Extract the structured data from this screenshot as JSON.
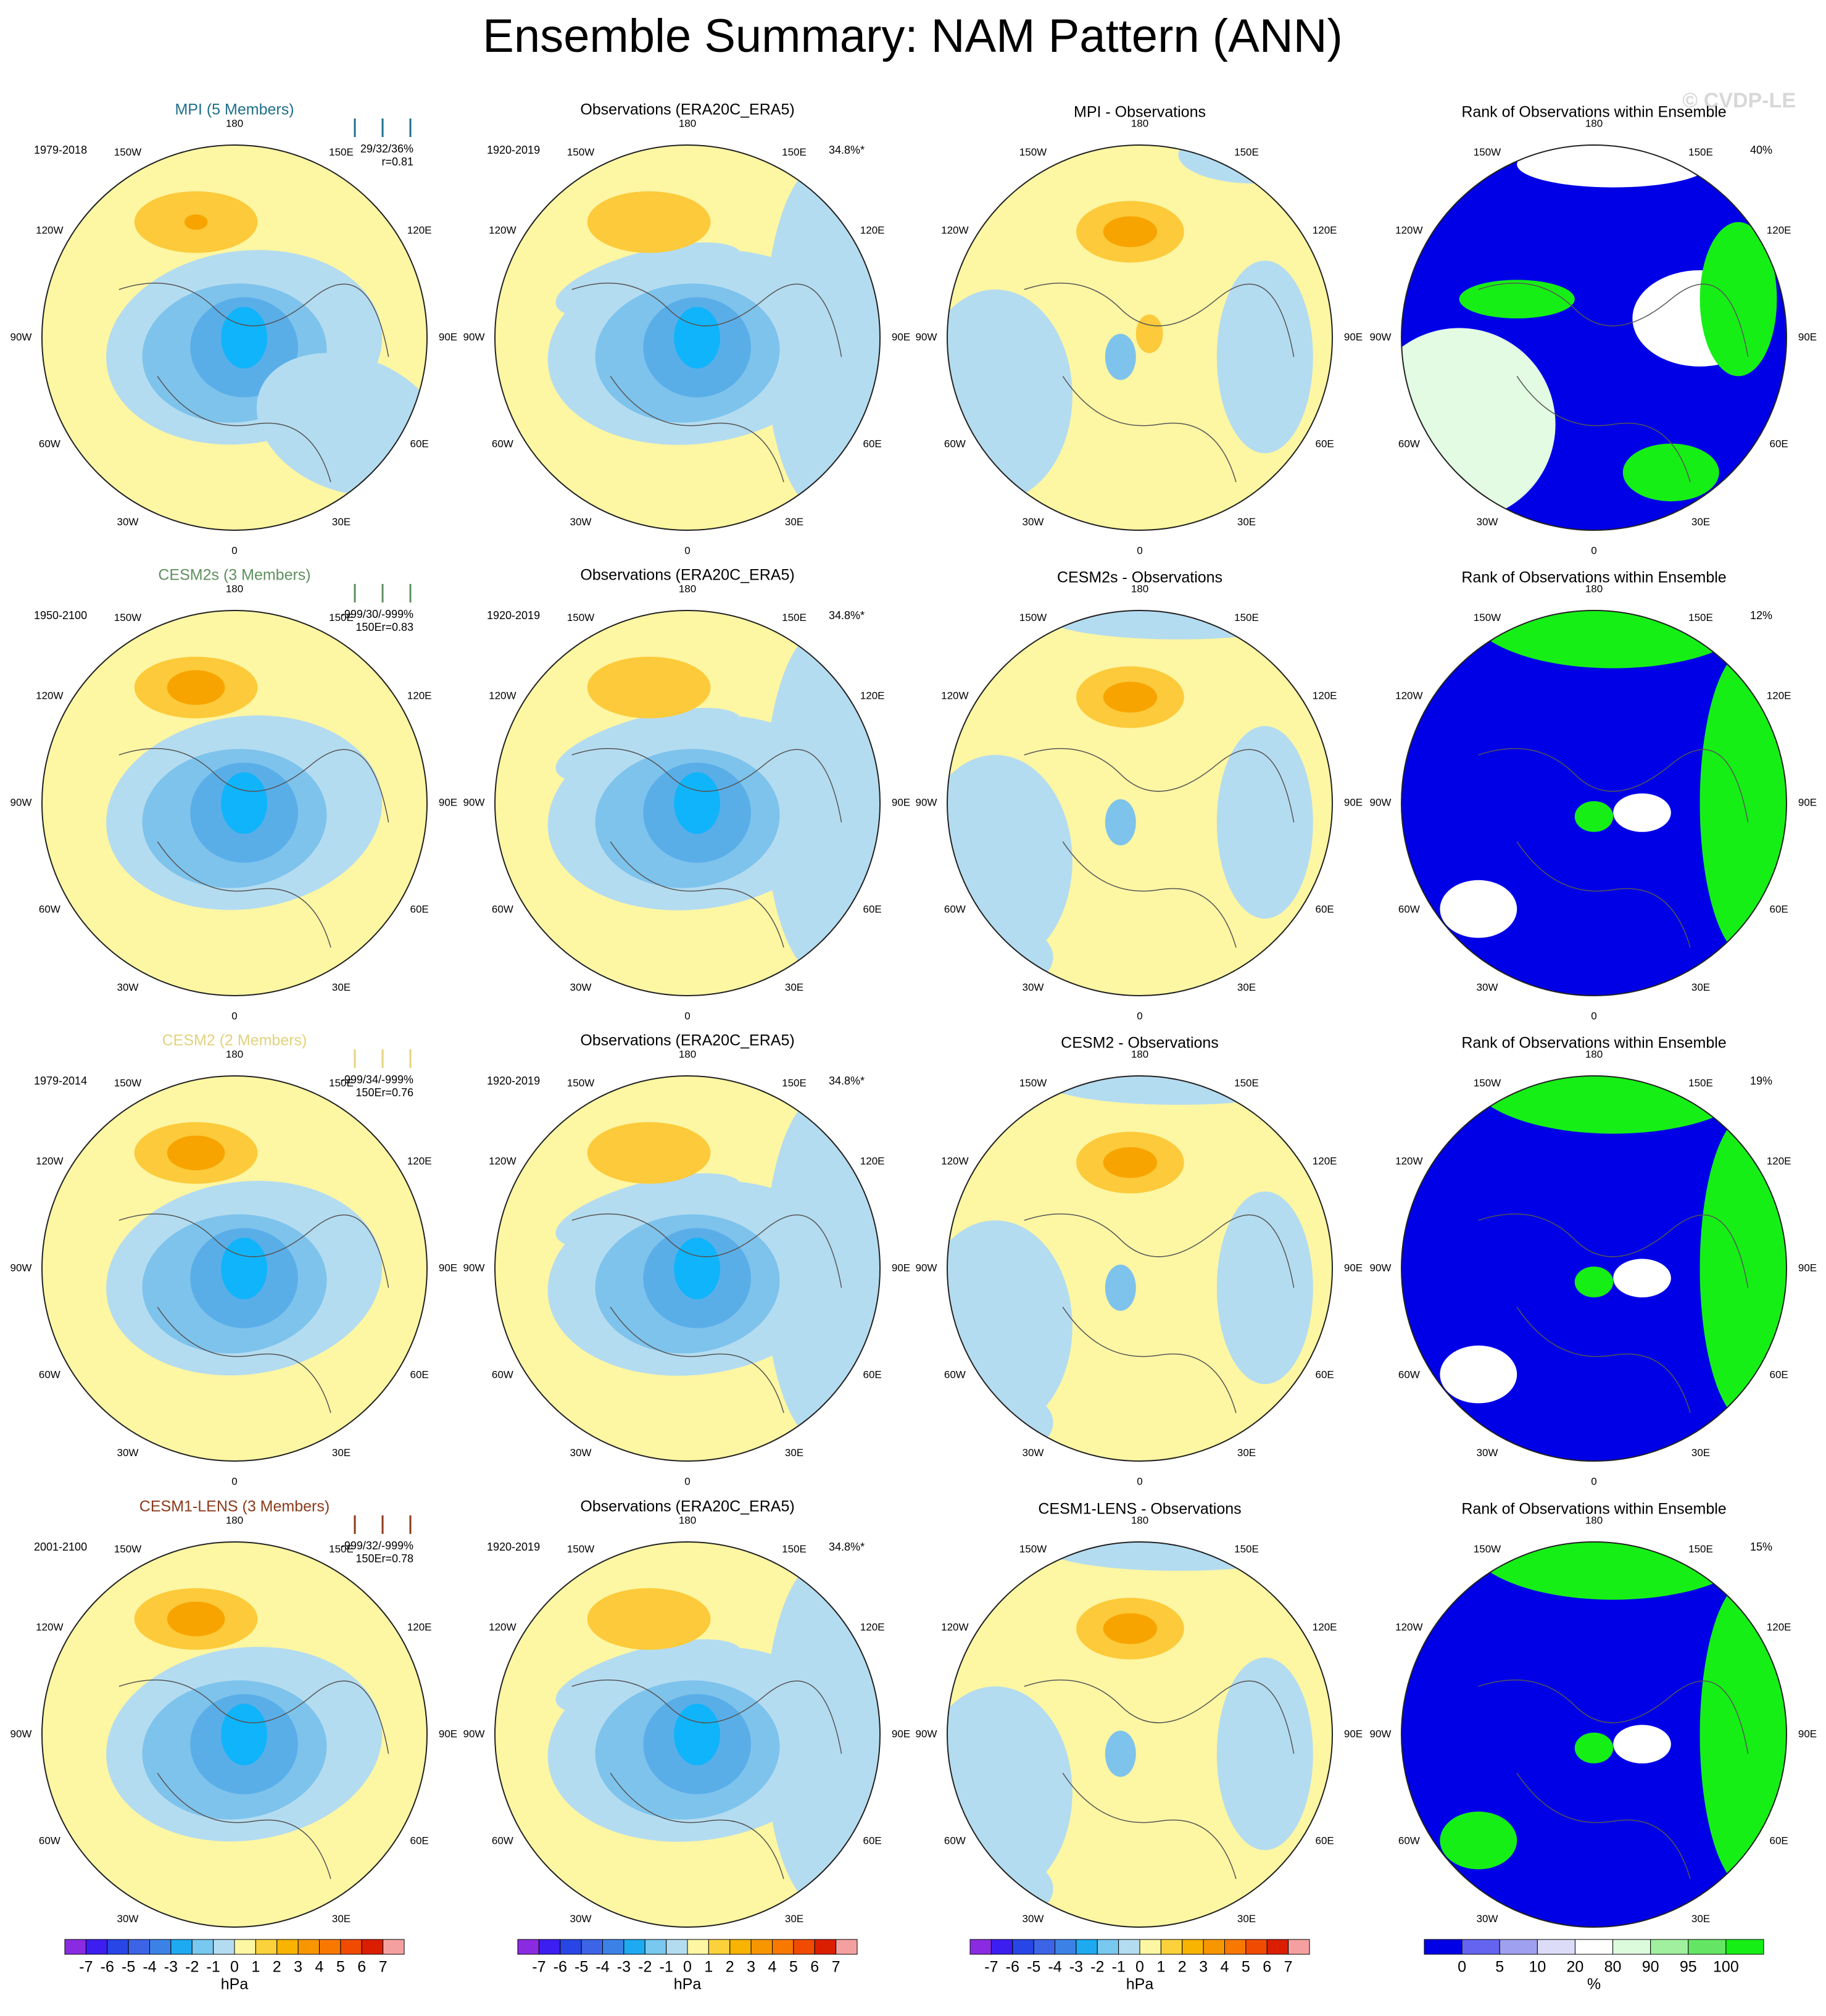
{
  "title": "Ensemble Summary: NAM Pattern (ANN)",
  "watermark": "© CVDP-LE",
  "map_labels": [
    "180",
    "150W",
    "150E",
    "120W",
    "120E",
    "90W",
    "90E",
    "60W",
    "60E",
    "30W",
    "30E",
    "0"
  ],
  "rows": [
    {
      "model_title": "MPI (5 Members)",
      "model_title_color": "#1f6f8b",
      "model_period": "1979-2018",
      "model_stats": "29/32/36%",
      "model_r": "r=0.81",
      "obs_title": "Observations (ERA20C_ERA5)",
      "obs_period": "1920-2019",
      "obs_pct": "34.8%*",
      "diff_title": "MPI - Observations",
      "rank_title": "Rank of Observations within Ensemble",
      "rank_pct": "40%"
    },
    {
      "model_title": "CESM2s (3 Members)",
      "model_title_color": "#5f8f5f",
      "model_period": "1950-2100",
      "model_stats": "-999/30/-999%",
      "model_r": "150Er=0.83",
      "obs_title": "Observations (ERA20C_ERA5)",
      "obs_period": "1920-2019",
      "obs_pct": "34.8%*",
      "diff_title": "CESM2s - Observations",
      "rank_title": "Rank of Observations within Ensemble",
      "rank_pct": "12%"
    },
    {
      "model_title": "CESM2 (2 Members)",
      "model_title_color": "#e3d27c",
      "model_period": "1979-2014",
      "model_stats": "-999/34/-999%",
      "model_r": "150Er=0.76",
      "obs_title": "Observations (ERA20C_ERA5)",
      "obs_period": "1920-2019",
      "obs_pct": "34.8%*",
      "diff_title": "CESM2 - Observations",
      "rank_title": "Rank of Observations within Ensemble",
      "rank_pct": "19%"
    },
    {
      "model_title": "CESM1-LENS (3 Members)",
      "model_title_color": "#8b3a1a",
      "model_period": "2001-2100",
      "model_stats": "-999/32/-999%",
      "model_r": "150Er=0.78",
      "obs_title": "Observations (ERA20C_ERA5)",
      "obs_period": "1920-2019",
      "obs_pct": "34.8%*",
      "diff_title": "CESM1-LENS - Observations",
      "rank_title": "Rank of Observations within Ensemble",
      "rank_pct": "15%"
    }
  ],
  "colorbar_hpa": {
    "labels": [
      "-7",
      "-6",
      "-5",
      "-4",
      "-3",
      "-2",
      "-1",
      "0",
      "1",
      "2",
      "3",
      "4",
      "5",
      "6",
      "7"
    ],
    "unit": "hPa"
  },
  "colorbar_rank": {
    "labels": [
      "0",
      "5",
      "10",
      "20",
      "80",
      "90",
      "95",
      "100"
    ],
    "unit": "%"
  }
}
